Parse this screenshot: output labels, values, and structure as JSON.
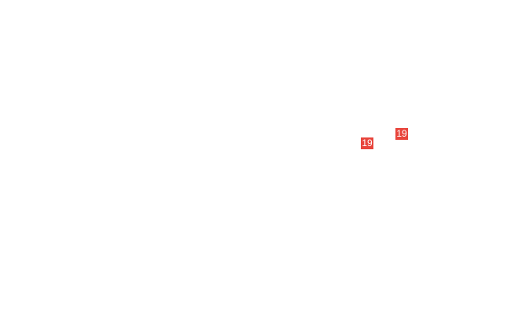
{
  "badge_color": "#e8453c",
  "badges": [
    {
      "label": "19"
    },
    {
      "label": "19"
    }
  ]
}
